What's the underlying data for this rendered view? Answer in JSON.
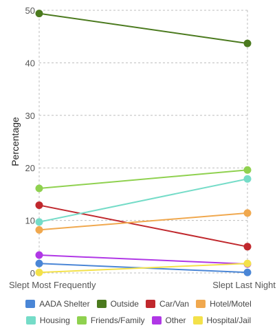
{
  "chart_data": {
    "type": "line",
    "title": "",
    "xlabel": "",
    "ylabel": "Percentage",
    "categories": [
      "Slept Most Frequently",
      "Slept Last Night"
    ],
    "ylim": [
      0,
      50
    ],
    "yticks": [
      "0",
      "10",
      "20",
      "30",
      "40",
      "50"
    ],
    "grid": true,
    "legend_placement": "bottom",
    "series": [
      {
        "name": "AADA Shelter",
        "color": "#4a86d6",
        "values": [
          1.8,
          0.1
        ]
      },
      {
        "name": "Outside",
        "color": "#4b7a1e",
        "values": [
          49.4,
          43.7
        ]
      },
      {
        "name": "Car/Van",
        "color": "#c0282d",
        "values": [
          12.9,
          5.0
        ]
      },
      {
        "name": "Hotel/Motel",
        "color": "#f0a84e",
        "values": [
          8.2,
          11.4
        ]
      },
      {
        "name": "Housing",
        "color": "#75dcc8",
        "values": [
          9.7,
          17.9
        ]
      },
      {
        "name": "Friends/Family",
        "color": "#8fd14f",
        "values": [
          16.1,
          19.6
        ]
      },
      {
        "name": "Other",
        "color": "#b037e6",
        "values": [
          3.4,
          1.7
        ]
      },
      {
        "name": "Hospital/Jail",
        "color": "#f3e14a",
        "values": [
          0.1,
          1.8
        ]
      }
    ]
  }
}
